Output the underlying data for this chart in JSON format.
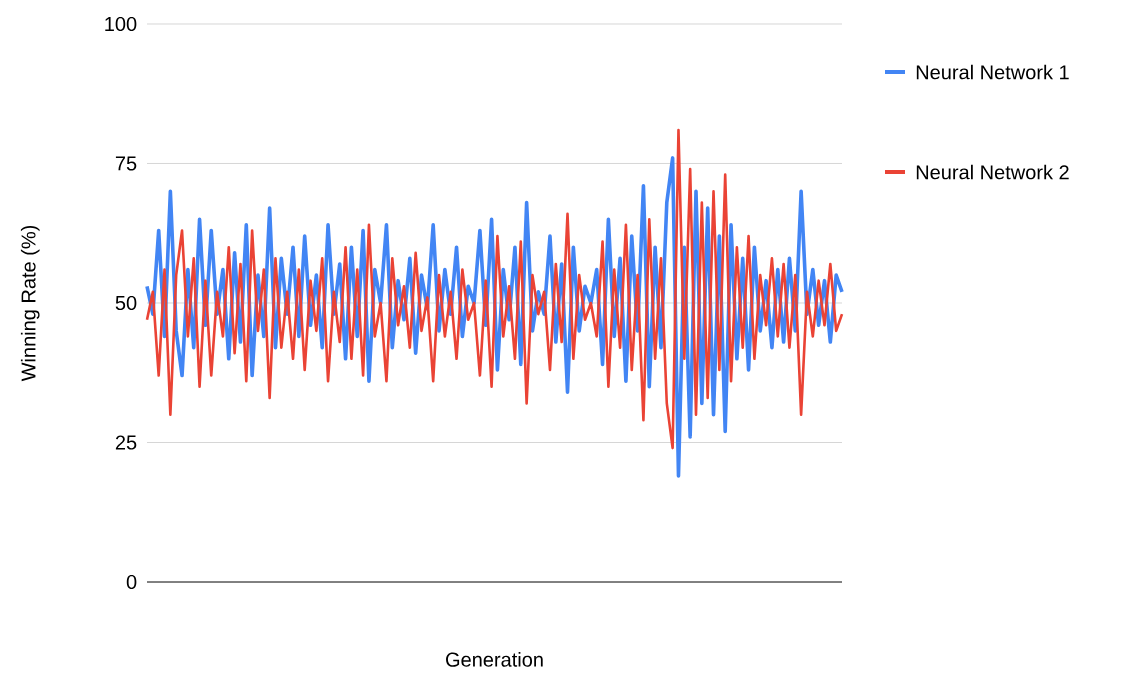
{
  "chart_data": {
    "type": "line",
    "xlabel": "Generation",
    "ylabel": "Winning Rate (%)",
    "categories": [
      null,
      null,
      null,
      null,
      null,
      null,
      null,
      null,
      null,
      null,
      null,
      null,
      null,
      null,
      null,
      null,
      null,
      null,
      null,
      null,
      null,
      null,
      null,
      null,
      null,
      null,
      null,
      null,
      null,
      null,
      null,
      null,
      null,
      null,
      null,
      null,
      null,
      null,
      null,
      null,
      null,
      null,
      null,
      null,
      null,
      null,
      null,
      null,
      null,
      null,
      null,
      null,
      null,
      null,
      null,
      null,
      null,
      null,
      null,
      null,
      null,
      null,
      null,
      null,
      null,
      null,
      null,
      null,
      null,
      null,
      null,
      null,
      null,
      null,
      null,
      null,
      null,
      null,
      null,
      null,
      null,
      null,
      null,
      null,
      null,
      null,
      null,
      null,
      null,
      null,
      null,
      null,
      null,
      null,
      null,
      null,
      null,
      null,
      null,
      null,
      null,
      null,
      null,
      null,
      null,
      null,
      null,
      null,
      null,
      null,
      null,
      null,
      null,
      null,
      null,
      null,
      null,
      null,
      null,
      null
    ],
    "series": [
      {
        "name": "Neural Network 1",
        "color": "#4285f4",
        "values": [
          53,
          48,
          63,
          44,
          70,
          45,
          37,
          56,
          42,
          65,
          46,
          63,
          48,
          56,
          40,
          59,
          43,
          64,
          37,
          55,
          44,
          67,
          42,
          58,
          48,
          60,
          44,
          62,
          46,
          55,
          42,
          64,
          48,
          57,
          40,
          60,
          44,
          63,
          36,
          56,
          50,
          64,
          42,
          54,
          47,
          58,
          41,
          55,
          49,
          64,
          45,
          56,
          48,
          60,
          44,
          53,
          50,
          63,
          46,
          65,
          38,
          56,
          47,
          60,
          39,
          68,
          45,
          52,
          48,
          62,
          43,
          57,
          34,
          60,
          45,
          53,
          50,
          56,
          39,
          65,
          44,
          58,
          36,
          62,
          45,
          71,
          35,
          60,
          42,
          68,
          76,
          19,
          60,
          26,
          70,
          32,
          67,
          30,
          62,
          27,
          64,
          40,
          58,
          38,
          60,
          45,
          54,
          42,
          56,
          43,
          58,
          45,
          70,
          48,
          56,
          46,
          54,
          43,
          55,
          52
        ]
      },
      {
        "name": "Neural Network 2",
        "color": "#ea4335",
        "values": [
          47,
          52,
          37,
          56,
          30,
          55,
          63,
          44,
          58,
          35,
          54,
          37,
          52,
          44,
          60,
          41,
          57,
          36,
          63,
          45,
          56,
          33,
          58,
          42,
          52,
          40,
          56,
          38,
          54,
          45,
          58,
          36,
          52,
          43,
          60,
          40,
          56,
          37,
          64,
          44,
          50,
          36,
          58,
          46,
          53,
          42,
          59,
          45,
          51,
          36,
          55,
          44,
          52,
          40,
          56,
          47,
          50,
          37,
          54,
          35,
          62,
          44,
          53,
          40,
          61,
          32,
          55,
          48,
          52,
          38,
          57,
          43,
          66,
          40,
          55,
          47,
          50,
          44,
          61,
          35,
          56,
          42,
          64,
          38,
          55,
          29,
          65,
          40,
          58,
          32,
          24,
          81,
          40,
          74,
          30,
          68,
          33,
          70,
          38,
          73,
          36,
          60,
          42,
          62,
          40,
          55,
          46,
          58,
          44,
          57,
          42,
          55,
          30,
          52,
          44,
          54,
          46,
          57,
          45,
          48
        ]
      }
    ],
    "ylim": [
      0,
      100
    ],
    "yticks": [
      0,
      25,
      50,
      75,
      100
    ],
    "grid": "y",
    "legend": "right",
    "marker": "none",
    "line_style": "solid"
  }
}
